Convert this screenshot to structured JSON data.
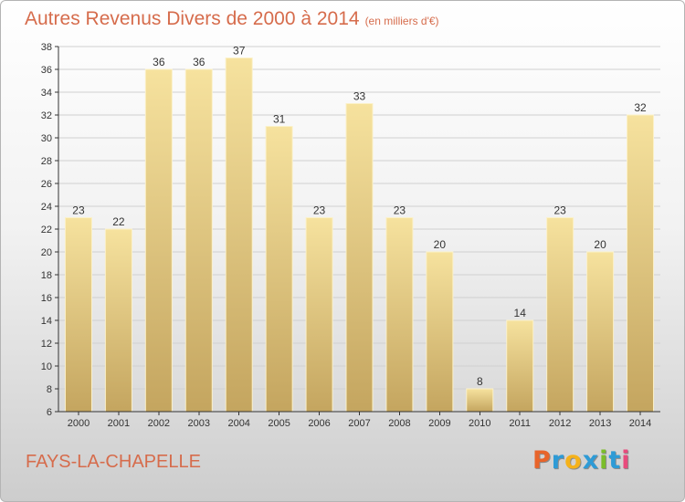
{
  "title": "Autres Revenus Divers de 2000 à 2014",
  "title_unit": "(en milliers d'€)",
  "place_name": "FAYS-LA-CHAPELLE",
  "logo": {
    "text": "Proxiti",
    "letter_colors": [
      "#e8642a",
      "#2e9bd6",
      "#f5b21b",
      "#2e9bd6",
      "#7bbd2a",
      "#2e9bd6",
      "#e84a7c"
    ]
  },
  "colors": {
    "title": "#d66c4c",
    "bar_light": "#f6e29e",
    "bar_dark": "#c4a55f",
    "grid": "#d0d0d0",
    "axis": "#333333"
  },
  "chart_data": {
    "type": "bar",
    "categories": [
      "2000",
      "2001",
      "2002",
      "2003",
      "2004",
      "2005",
      "2006",
      "2007",
      "2008",
      "2009",
      "2010",
      "2011",
      "2012",
      "2013",
      "2014"
    ],
    "values": [
      23,
      22,
      36,
      36,
      37,
      31,
      23,
      33,
      23,
      20,
      8,
      14,
      23,
      20,
      32
    ],
    "ylim": [
      6,
      38
    ],
    "yticks": [
      6,
      8,
      10,
      12,
      14,
      16,
      18,
      20,
      22,
      24,
      26,
      28,
      30,
      32,
      34,
      36,
      38
    ],
    "grid": true,
    "data_labels": true
  }
}
